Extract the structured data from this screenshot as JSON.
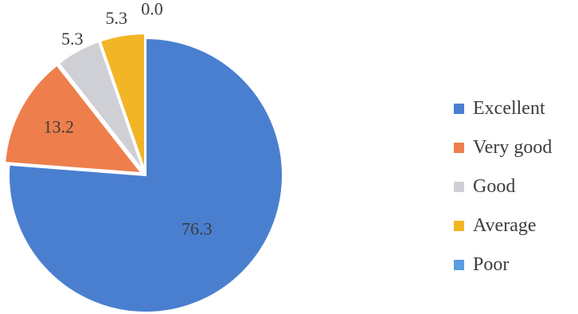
{
  "chart_data": {
    "type": "pie",
    "categories": [
      "Excellent",
      "Very good",
      "Good",
      "Average",
      "Poor"
    ],
    "values": [
      76.3,
      13.2,
      5.3,
      5.3,
      0.0
    ],
    "data_labels": [
      "76.3",
      "13.2",
      "5.3",
      "5.3",
      "0.0"
    ],
    "colors": [
      "#4a7fd0",
      "#ee7f4d",
      "#cfcfd6",
      "#f2b526",
      "#5b9de0"
    ],
    "start_angle": "12 o'clock",
    "direction": "clockwise",
    "exploded_slices": [
      "Very good",
      "Good",
      "Average",
      "Poor"
    ],
    "legend_position": "right"
  }
}
